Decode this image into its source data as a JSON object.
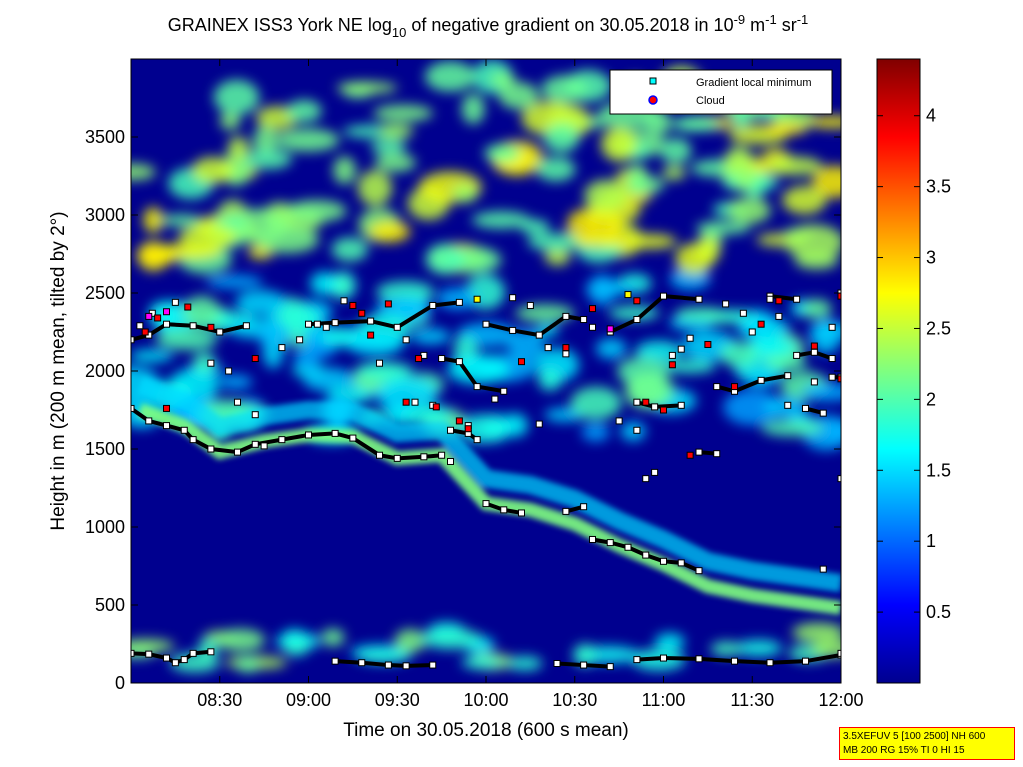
{
  "chart_data": {
    "type": "heatmap",
    "title_parts": {
      "t1": "GRAINEX ISS3 York NE log",
      "sub10": "10",
      "t2": " of negative gradient on 30.05.2018 in 10",
      "sup1": "-9",
      "t3": " m",
      "sup2": "-1",
      "t4": " sr",
      "sup3": "-1"
    },
    "xlabel": "Time on 30.05.2018 (600 s mean)",
    "ylabel": "Height in m (200 m mean, tilted by 2°)",
    "x_ticks": [
      "08:30",
      "09:00",
      "09:30",
      "10:00",
      "10:30",
      "11:00",
      "11:30",
      "12:00"
    ],
    "x_tick_hours": [
      8.5,
      9.0,
      9.5,
      10.0,
      10.5,
      11.0,
      11.5,
      12.0
    ],
    "xlim_hours": [
      8.0,
      12.0
    ],
    "y_ticks": [
      0,
      500,
      1000,
      1500,
      2000,
      2500,
      3000,
      3500
    ],
    "ylim": [
      0,
      4000
    ],
    "colorbar": {
      "ticks": [
        "0.5",
        "1",
        "1.5",
        "2",
        "2.5",
        "3",
        "3.5",
        "4"
      ],
      "tick_values": [
        0.5,
        1.0,
        1.5,
        2.0,
        2.5,
        3.0,
        3.5,
        4.0
      ],
      "range": [
        0,
        4.4
      ],
      "colormap": "jet"
    },
    "legend": {
      "placement": "top-right",
      "entries": [
        {
          "label": "Gradient local minimum",
          "marker": "square",
          "color": "#00ffff"
        },
        {
          "label": "Cloud",
          "marker": "circle",
          "color": "#ff0000"
        }
      ]
    },
    "layers": [
      {
        "name": "surface-layer",
        "y": [
          120,
          340
        ],
        "level": 1.9
      },
      {
        "name": "upper-band",
        "y": [
          1600,
          2600
        ],
        "level": 1.6
      },
      {
        "name": "top-clouds",
        "y": [
          2700,
          3900
        ],
        "level": 2.3
      }
    ],
    "boundary_layer_top": [
      {
        "t": 8.05,
        "h": 1750
      },
      {
        "t": 8.3,
        "h": 1650
      },
      {
        "t": 8.5,
        "h": 1480
      },
      {
        "t": 8.75,
        "h": 1550
      },
      {
        "t": 9.0,
        "h": 1590
      },
      {
        "t": 9.25,
        "h": 1580
      },
      {
        "t": 9.5,
        "h": 1440
      },
      {
        "t": 9.75,
        "h": 1460
      },
      {
        "t": 10.0,
        "h": 1150
      },
      {
        "t": 10.25,
        "h": 1110
      },
      {
        "t": 10.5,
        "h": 1020
      },
      {
        "t": 10.75,
        "h": 880
      },
      {
        "t": 11.0,
        "h": 760
      },
      {
        "t": 11.25,
        "h": 620
      },
      {
        "t": 11.5,
        "h": 560
      },
      {
        "t": 11.75,
        "h": 520
      },
      {
        "t": 12.0,
        "h": 480
      }
    ],
    "gradient_minimum_tracks": [
      {
        "points": [
          [
            8.0,
            190
          ],
          [
            8.1,
            185
          ],
          [
            8.2,
            160
          ],
          [
            8.25,
            130
          ],
          [
            8.3,
            150
          ],
          [
            8.35,
            190
          ],
          [
            8.45,
            200
          ]
        ]
      },
      {
        "points": [
          [
            9.15,
            140
          ],
          [
            9.3,
            130
          ],
          [
            9.45,
            115
          ],
          [
            9.55,
            110
          ],
          [
            9.7,
            115
          ]
        ]
      },
      {
        "points": [
          [
            10.4,
            125
          ],
          [
            10.55,
            115
          ],
          [
            10.7,
            105
          ]
        ]
      },
      {
        "points": [
          [
            10.85,
            150
          ],
          [
            11.0,
            160
          ],
          [
            11.2,
            155
          ],
          [
            11.4,
            140
          ],
          [
            11.6,
            130
          ],
          [
            11.8,
            140
          ],
          [
            12.0,
            180
          ]
        ]
      },
      {
        "points": [
          [
            8.0,
            1760
          ],
          [
            8.1,
            1680
          ],
          [
            8.2,
            1650
          ],
          [
            8.3,
            1620
          ],
          [
            8.35,
            1560
          ],
          [
            8.45,
            1500
          ],
          [
            8.6,
            1480
          ],
          [
            8.7,
            1530
          ],
          [
            8.85,
            1560
          ],
          [
            9.0,
            1590
          ],
          [
            9.15,
            1600
          ],
          [
            9.25,
            1570
          ],
          [
            9.4,
            1460
          ],
          [
            9.5,
            1440
          ],
          [
            9.65,
            1450
          ],
          [
            9.75,
            1460
          ]
        ]
      },
      {
        "points": [
          [
            9.8,
            1620
          ],
          [
            9.9,
            1600
          ],
          [
            9.95,
            1560
          ]
        ]
      },
      {
        "points": [
          [
            10.0,
            1150
          ],
          [
            10.1,
            1110
          ],
          [
            10.2,
            1090
          ]
        ]
      },
      {
        "points": [
          [
            10.45,
            1100
          ],
          [
            10.55,
            1130
          ]
        ]
      },
      {
        "points": [
          [
            10.6,
            920
          ],
          [
            10.7,
            900
          ],
          [
            10.8,
            870
          ],
          [
            10.9,
            820
          ],
          [
            11.0,
            780
          ],
          [
            11.1,
            770
          ],
          [
            11.2,
            720
          ]
        ]
      },
      {
        "points": [
          [
            8.0,
            2200
          ],
          [
            8.1,
            2230
          ],
          [
            8.2,
            2300
          ],
          [
            8.35,
            2290
          ],
          [
            8.5,
            2250
          ],
          [
            8.65,
            2290
          ]
        ]
      },
      {
        "points": [
          [
            9.0,
            2300
          ],
          [
            9.15,
            2310
          ],
          [
            9.35,
            2320
          ],
          [
            9.5,
            2280
          ],
          [
            9.7,
            2420
          ],
          [
            9.85,
            2440
          ]
        ]
      },
      {
        "points": [
          [
            9.75,
            2080
          ],
          [
            9.85,
            2060
          ],
          [
            9.95,
            1900
          ],
          [
            10.1,
            1870
          ]
        ]
      },
      {
        "points": [
          [
            10.0,
            2300
          ],
          [
            10.15,
            2260
          ],
          [
            10.3,
            2230
          ],
          [
            10.45,
            2350
          ],
          [
            10.55,
            2330
          ]
        ]
      },
      {
        "points": [
          [
            10.7,
            2250
          ],
          [
            10.85,
            2330
          ],
          [
            11.0,
            2480
          ],
          [
            11.2,
            2460
          ]
        ]
      },
      {
        "points": [
          [
            11.3,
            1900
          ],
          [
            11.4,
            1870
          ],
          [
            11.55,
            1940
          ],
          [
            11.7,
            1970
          ]
        ]
      },
      {
        "points": [
          [
            11.75,
            2100
          ],
          [
            11.85,
            2120
          ],
          [
            11.95,
            2080
          ]
        ]
      },
      {
        "points": [
          [
            11.6,
            2480
          ],
          [
            11.75,
            2460
          ]
        ]
      },
      {
        "points": [
          [
            10.85,
            1800
          ],
          [
            10.95,
            1770
          ],
          [
            11.1,
            1780
          ]
        ]
      },
      {
        "points": [
          [
            11.2,
            1480
          ],
          [
            11.3,
            1470
          ]
        ]
      },
      {
        "points": [
          [
            11.8,
            1760
          ],
          [
            11.9,
            1730
          ]
        ]
      },
      {
        "points": [
          [
            11.95,
            1960
          ],
          [
            12.0,
            1960
          ]
        ]
      }
    ],
    "scatter_points": [
      [
        8.05,
        2290
      ],
      [
        8.12,
        2370
      ],
      [
        8.25,
        2440
      ],
      [
        8.45,
        2050
      ],
      [
        8.55,
        2000
      ],
      [
        8.6,
        1800
      ],
      [
        8.7,
        1720
      ],
      [
        8.75,
        1520
      ],
      [
        8.85,
        2150
      ],
      [
        8.95,
        2200
      ],
      [
        9.05,
        2300
      ],
      [
        9.1,
        2280
      ],
      [
        9.2,
        2450
      ],
      [
        9.4,
        2050
      ],
      [
        9.55,
        2200
      ],
      [
        9.65,
        2100
      ],
      [
        9.6,
        1800
      ],
      [
        9.7,
        1780
      ],
      [
        9.8,
        1420
      ],
      [
        9.9,
        1650
      ],
      [
        10.05,
        1820
      ],
      [
        10.15,
        2470
      ],
      [
        10.25,
        2420
      ],
      [
        10.3,
        1660
      ],
      [
        10.35,
        2150
      ],
      [
        10.45,
        2110
      ],
      [
        10.6,
        2280
      ],
      [
        10.75,
        1680
      ],
      [
        10.85,
        1620
      ],
      [
        10.9,
        1310
      ],
      [
        10.95,
        1350
      ],
      [
        11.05,
        2100
      ],
      [
        11.1,
        2140
      ],
      [
        11.15,
        2210
      ],
      [
        11.35,
        2430
      ],
      [
        11.45,
        2370
      ],
      [
        11.5,
        2250
      ],
      [
        11.6,
        2460
      ],
      [
        11.65,
        2350
      ],
      [
        11.7,
        1780
      ],
      [
        11.85,
        1930
      ],
      [
        11.95,
        2280
      ],
      [
        12.0,
        1310
      ],
      [
        12.0,
        2500
      ],
      [
        11.9,
        730
      ],
      [
        12.0,
        190
      ]
    ],
    "cloud_points": [
      [
        8.08,
        2250
      ],
      [
        8.2,
        1760
      ],
      [
        8.32,
        2410
      ],
      [
        8.45,
        2280
      ],
      [
        8.7,
        2080
      ],
      [
        9.3,
        2370
      ],
      [
        9.35,
        2230
      ],
      [
        9.45,
        2430
      ],
      [
        9.55,
        1800
      ],
      [
        9.62,
        2080
      ],
      [
        9.72,
        1770
      ],
      [
        9.85,
        1680
      ],
      [
        9.9,
        1630
      ],
      [
        10.2,
        2060
      ],
      [
        10.45,
        2150
      ],
      [
        10.6,
        2400
      ],
      [
        10.85,
        2450
      ],
      [
        10.9,
        1800
      ],
      [
        11.0,
        1750
      ],
      [
        11.05,
        2040
      ],
      [
        11.15,
        1460
      ],
      [
        11.25,
        2170
      ],
      [
        11.4,
        1900
      ],
      [
        11.55,
        2300
      ],
      [
        11.85,
        2160
      ],
      [
        12.0,
        1950
      ],
      [
        12.0,
        2480
      ],
      [
        8.15,
        2340
      ],
      [
        9.25,
        2420
      ],
      [
        11.65,
        2450
      ]
    ],
    "extra_colored_points": [
      {
        "t": 8.1,
        "h": 2350,
        "color": "#ff00ff"
      },
      {
        "t": 9.95,
        "h": 2460,
        "color": "#ffff00"
      },
      {
        "t": 10.7,
        "h": 2270,
        "color": "#ff00ff"
      },
      {
        "t": 10.8,
        "h": 2490,
        "color": "#ffff00"
      },
      {
        "t": 8.2,
        "h": 2380,
        "color": "#ff00ff"
      }
    ]
  },
  "info_box": {
    "line1": "3.5XEFUV 5 [100 2500] NH 600",
    "line2": "MB 200 RG 15% TI 0 HI 15"
  }
}
